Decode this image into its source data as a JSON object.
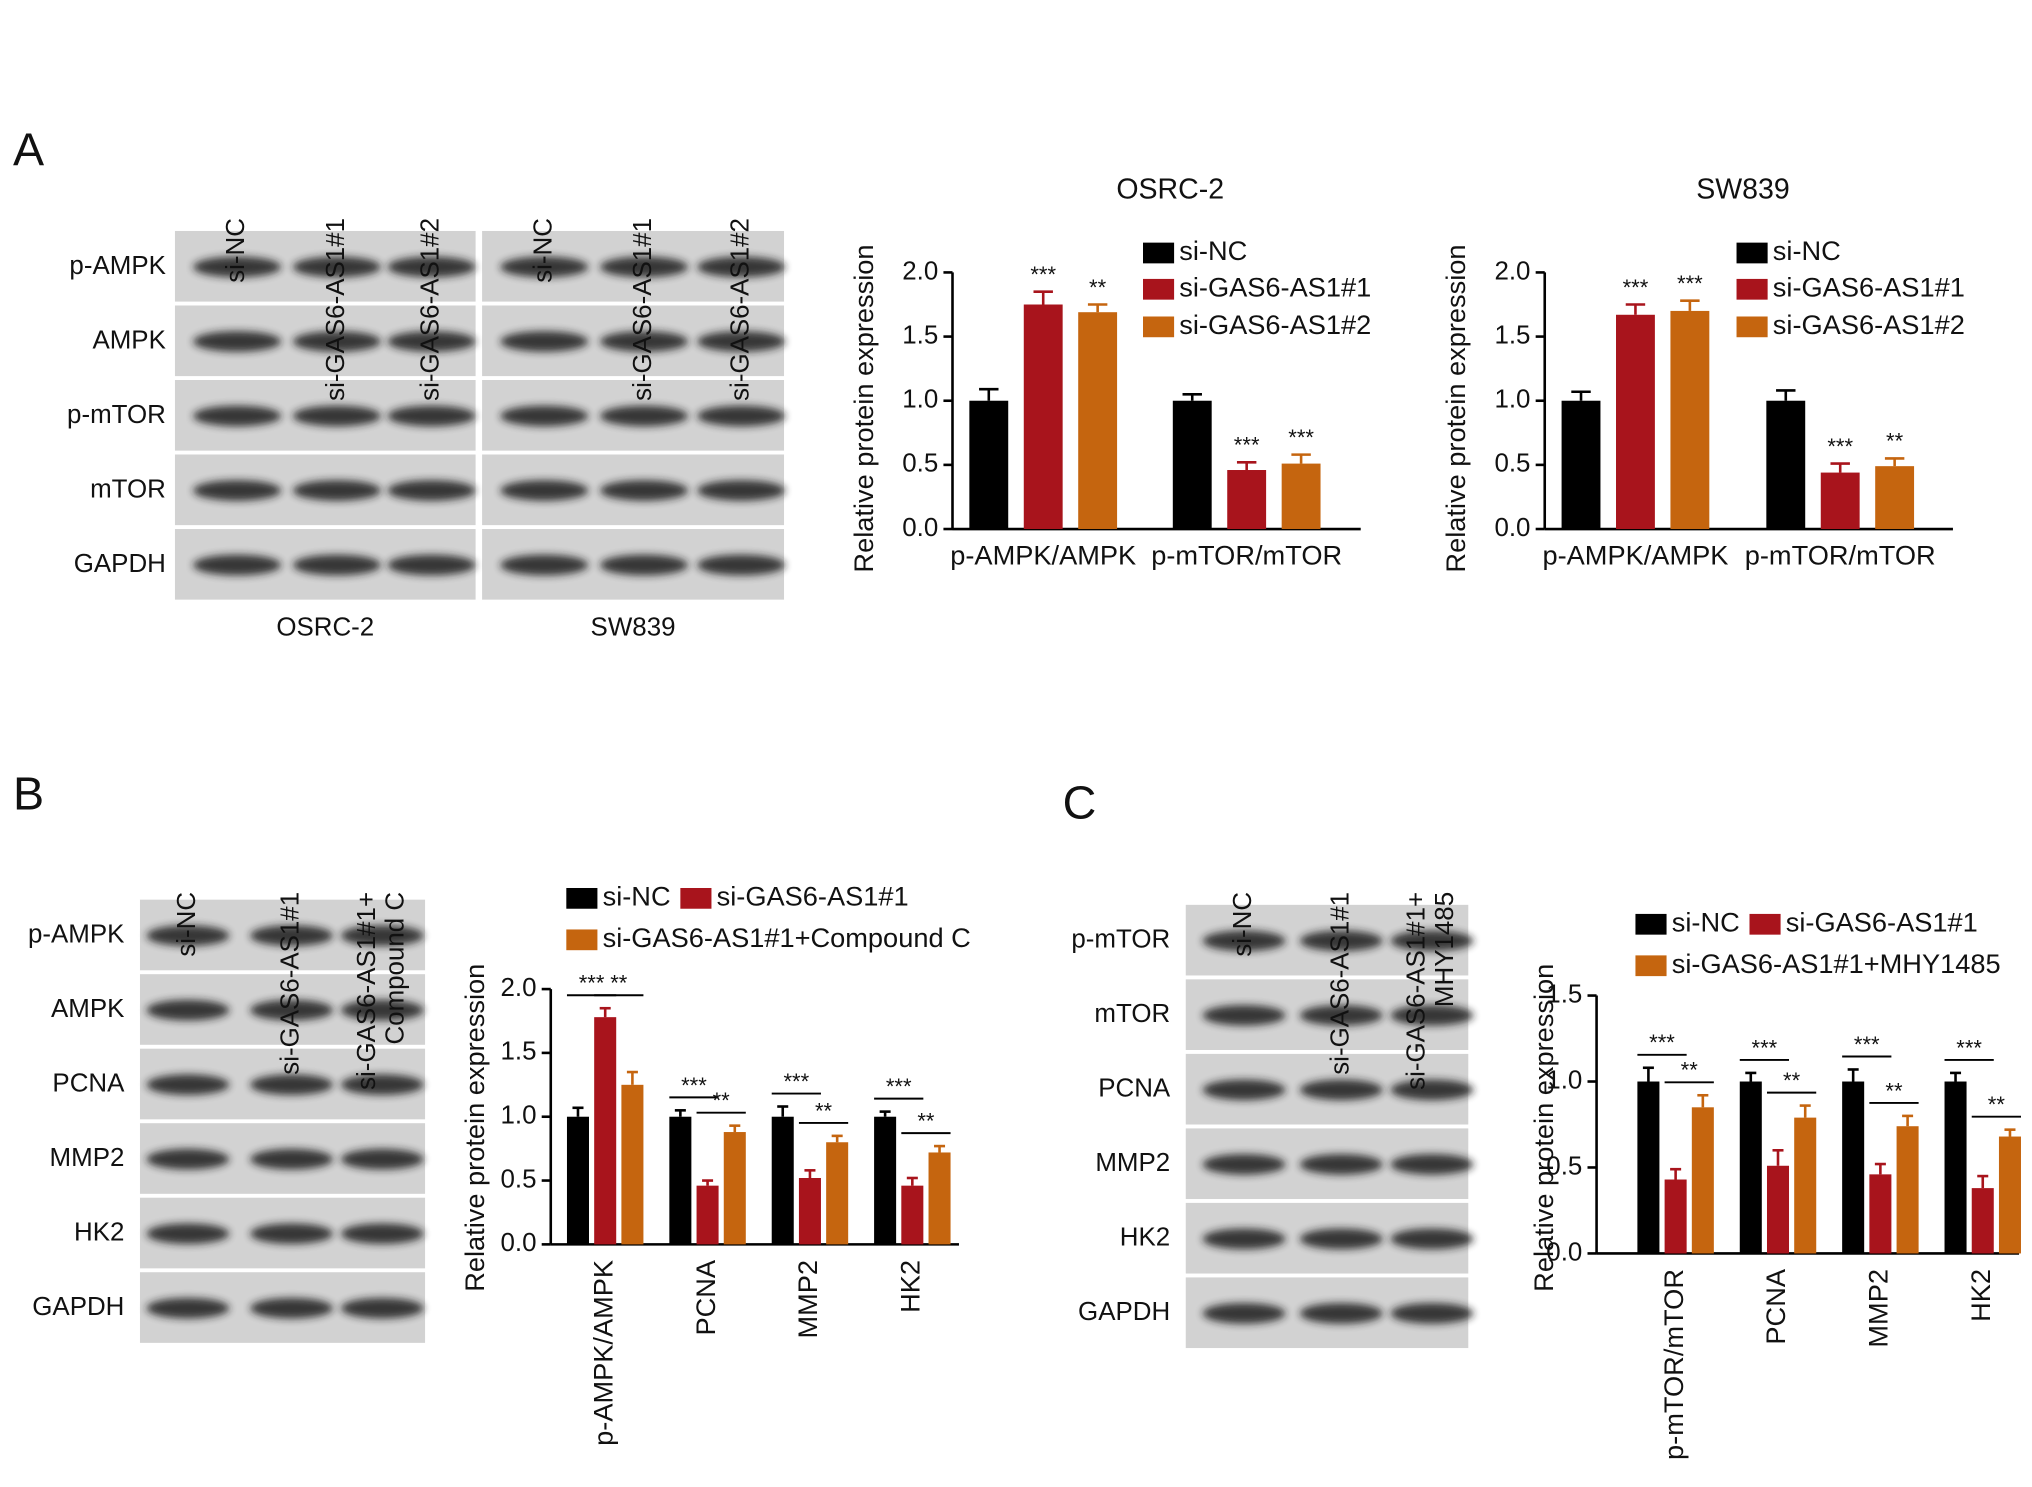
{
  "panels": [
    "A",
    "B",
    "C"
  ],
  "blots": [
    {
      "lanes": [
        [
          "si-NC"
        ],
        [
          "si-GAS6-AS1#1"
        ],
        [
          "si-GAS6-AS1#2"
        ],
        [
          "si-NC"
        ],
        [
          "si-GAS6-AS1#1"
        ],
        [
          "si-GAS6-AS1#2"
        ]
      ],
      "rows": [
        "p-AMPK",
        "AMPK",
        "p-mTOR",
        "mTOR",
        "GAPDH"
      ],
      "groups": [
        "OSRC-2",
        "SW839"
      ]
    },
    {
      "lanes": [
        [
          "si-NC"
        ],
        [
          "si-GAS6-AS1#1"
        ],
        [
          "si-GAS6-AS1#1+",
          "Compound C"
        ]
      ],
      "rows": [
        "p-AMPK",
        "AMPK",
        "PCNA",
        "MMP2",
        "HK2",
        "GAPDH"
      ]
    },
    {
      "lanes": [
        [
          "si-NC"
        ],
        [
          "si-GAS6-AS1#1"
        ],
        [
          "si-GAS6-AS1#1+",
          "MHY1485"
        ]
      ],
      "rows": [
        "p-mTOR",
        "mTOR",
        "PCNA",
        "MMP2",
        "HK2",
        "GAPDH"
      ]
    }
  ],
  "chart_data": [
    {
      "type": "bar",
      "title": "OSRC-2",
      "ylabel": "Relative protein expression",
      "brackets": false,
      "categories": [
        "p-AMPK/AMPK",
        "p-mTOR/mTOR"
      ],
      "series": [
        {
          "name": "si-NC",
          "color": "#000000",
          "values": [
            1.0,
            1.0
          ],
          "errors": [
            0.09,
            0.05
          ]
        },
        {
          "name": "si-GAS6-AS1#1",
          "color": "#a8141c",
          "values": [
            1.75,
            0.46
          ],
          "errors": [
            0.1,
            0.06
          ],
          "annotations": [
            "***",
            "***"
          ]
        },
        {
          "name": "si-GAS6-AS1#2",
          "color": "#c5650f",
          "values": [
            1.69,
            0.51
          ],
          "errors": [
            0.06,
            0.07
          ],
          "annotations": [
            "**",
            "***"
          ]
        }
      ],
      "ylim": [
        0,
        2
      ],
      "yticks": [
        {
          "value": 0,
          "label": "0.0"
        },
        {
          "value": 0.5,
          "label": "0.5"
        },
        {
          "value": 1,
          "label": "1.0"
        },
        {
          "value": 1.5,
          "label": "1.5"
        },
        {
          "value": 2,
          "label": "2.0"
        }
      ]
    },
    {
      "type": "bar",
      "title": "SW839",
      "ylabel": "Relative protein expression",
      "brackets": false,
      "categories": [
        "p-AMPK/AMPK",
        "p-mTOR/mTOR"
      ],
      "series": [
        {
          "name": "si-NC",
          "color": "#000000",
          "values": [
            1.0,
            1.0
          ],
          "errors": [
            0.07,
            0.08
          ]
        },
        {
          "name": "si-GAS6-AS1#1",
          "color": "#a8141c",
          "values": [
            1.67,
            0.44
          ],
          "errors": [
            0.08,
            0.07
          ],
          "annotations": [
            "***",
            "***"
          ]
        },
        {
          "name": "si-GAS6-AS1#2",
          "color": "#c5650f",
          "values": [
            1.7,
            0.49
          ],
          "errors": [
            0.08,
            0.06
          ],
          "annotations": [
            "***",
            "**"
          ]
        }
      ],
      "ylim": [
        0,
        2
      ],
      "yticks": [
        {
          "value": 0,
          "label": "0.0"
        },
        {
          "value": 0.5,
          "label": "0.5"
        },
        {
          "value": 1,
          "label": "1.0"
        },
        {
          "value": 1.5,
          "label": "1.5"
        },
        {
          "value": 2,
          "label": "2.0"
        }
      ]
    },
    {
      "type": "bar",
      "ylabel": "Relative protein expression",
      "brackets": true,
      "categories": [
        "p-AMPK/AMPK",
        "PCNA",
        "MMP2",
        "HK2"
      ],
      "series": [
        {
          "name": "si-NC",
          "color": "#000000",
          "values": [
            1.0,
            1.0,
            1.0,
            1.0
          ],
          "errors": [
            0.07,
            0.05,
            0.08,
            0.04
          ]
        },
        {
          "name": "si-GAS6-AS1#1",
          "color": "#a8141c",
          "values": [
            1.78,
            0.46,
            0.52,
            0.46
          ],
          "errors": [
            0.07,
            0.04,
            0.06,
            0.06
          ],
          "annotations": [
            "***",
            "***",
            "***",
            "***"
          ]
        },
        {
          "name": "si-GAS6-AS1#1+Compound C",
          "color": "#c5650f",
          "values": [
            1.25,
            0.88,
            0.8,
            0.72
          ],
          "errors": [
            0.1,
            0.05,
            0.05,
            0.05
          ],
          "annotations": [
            "**",
            "**",
            "**",
            "**"
          ]
        }
      ],
      "ylim": [
        0,
        2
      ],
      "yticks": [
        {
          "value": 0,
          "label": "0.0"
        },
        {
          "value": 0.5,
          "label": "0.5"
        },
        {
          "value": 1,
          "label": "1.0"
        },
        {
          "value": 1.5,
          "label": "1.5"
        },
        {
          "value": 2,
          "label": "2.0"
        }
      ]
    },
    {
      "type": "bar",
      "ylabel": "Relative protein expression",
      "brackets": true,
      "categories": [
        "p-mTOR/mTOR",
        "PCNA",
        "MMP2",
        "HK2"
      ],
      "series": [
        {
          "name": "si-NC",
          "color": "#000000",
          "values": [
            1.0,
            1.0,
            1.0,
            1.0
          ],
          "errors": [
            0.08,
            0.05,
            0.07,
            0.05
          ]
        },
        {
          "name": "si-GAS6-AS1#1",
          "color": "#a8141c",
          "values": [
            0.43,
            0.51,
            0.46,
            0.38
          ],
          "errors": [
            0.06,
            0.09,
            0.06,
            0.07
          ],
          "annotations": [
            "***",
            "***",
            "***",
            "***"
          ]
        },
        {
          "name": "si-GAS6-AS1#1+MHY1485",
          "color": "#c5650f",
          "values": [
            0.85,
            0.79,
            0.74,
            0.68
          ],
          "errors": [
            0.07,
            0.07,
            0.06,
            0.04
          ],
          "annotations": [
            "**",
            "**",
            "**",
            "**"
          ]
        }
      ],
      "ylim": [
        0,
        1.5
      ],
      "yticks": [
        {
          "value": 0,
          "label": "0.0"
        },
        {
          "value": 0.5,
          "label": "0.5"
        },
        {
          "value": 1,
          "label": "1.0"
        },
        {
          "value": 1.5,
          "label": "1.5"
        }
      ]
    }
  ]
}
